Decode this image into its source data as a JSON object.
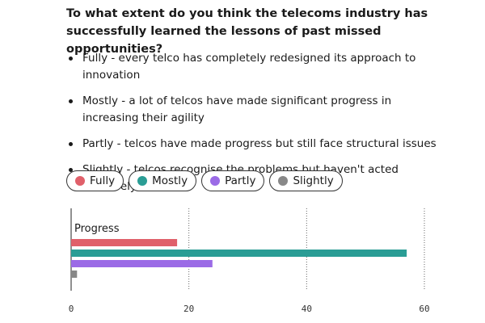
{
  "question": "To what extent do you think the telecoms industry has successfully learned the lessons of past missed opportunities?",
  "options": [
    "Fully - every telco has completely redesigned its approach to innovation",
    "Mostly - a lot of telcos have made significant progress in increasing their agility",
    "Partly - telcos have made progress but still face structural issues",
    "Slightly - telcos recognise the problems but haven't acted decisively"
  ],
  "legend": [
    {
      "label": "Fully",
      "color": "#e0606a"
    },
    {
      "label": "Mostly",
      "color": "#2a9d95"
    },
    {
      "label": "Partly",
      "color": "#9b6be6"
    },
    {
      "label": "Slightly",
      "color": "#888888"
    }
  ],
  "chart_data": {
    "type": "bar",
    "orientation": "horizontal",
    "categories": [
      "Progress"
    ],
    "series": [
      {
        "name": "Fully",
        "values": [
          18
        ],
        "color": "#e0606a"
      },
      {
        "name": "Mostly",
        "values": [
          57
        ],
        "color": "#2a9d95"
      },
      {
        "name": "Partly",
        "values": [
          24
        ],
        "color": "#9b6be6"
      },
      {
        "name": "Slightly",
        "values": [
          1
        ],
        "color": "#888888"
      }
    ],
    "xlim": [
      0,
      60
    ],
    "xticks": [
      0,
      20,
      40,
      60
    ],
    "grid": "vertical dotted"
  }
}
